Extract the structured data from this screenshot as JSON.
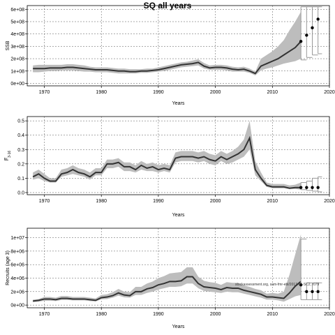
{
  "figure_title": "SQ all years",
  "annotation": "stockassessment.org, sam-fmr-ebl/2017-01-SC2, r079",
  "chart_data": [
    {
      "type": "line",
      "ylabel": "SSB",
      "xlabel": "Years",
      "xlim": [
        1967,
        2020
      ],
      "ylim": [
        -20000000.0,
        630000000.0
      ],
      "xticks": [
        1970,
        1980,
        1990,
        2000,
        2010,
        2020
      ],
      "yticks": [
        0,
        100000000.0,
        200000000.0,
        300000000.0,
        400000000.0,
        500000000.0,
        600000000.0
      ],
      "ytick_labels": [
        "0e+00",
        "1e+08",
        "2e+08",
        "3e+08",
        "4e+08",
        "5e+08",
        "6e+08"
      ],
      "grid": true,
      "series": [
        {
          "x": [
            1968,
            1969,
            1970,
            1971,
            1972,
            1973,
            1974,
            1975,
            1976,
            1977,
            1978,
            1979,
            1980,
            1981,
            1982,
            1983,
            1984,
            1985,
            1986,
            1987,
            1988,
            1989,
            1990,
            1991,
            1992,
            1993,
            1994,
            1995,
            1996,
            1997,
            1998,
            1999,
            2000,
            2001,
            2002,
            2003,
            2004,
            2005,
            2006,
            2007,
            2008,
            2009,
            2010,
            2011,
            2012,
            2013,
            2014,
            2015
          ],
          "values": [
            120000000.0,
            120000000.0,
            120000000.0,
            125000000.0,
            125000000.0,
            125000000.0,
            130000000.0,
            130000000.0,
            125000000.0,
            120000000.0,
            115000000.0,
            110000000.0,
            110000000.0,
            110000000.0,
            105000000.0,
            100000000.0,
            100000000.0,
            95000000.0,
            95000000.0,
            100000000.0,
            100000000.0,
            105000000.0,
            110000000.0,
            120000000.0,
            130000000.0,
            140000000.0,
            150000000.0,
            155000000.0,
            160000000.0,
            170000000.0,
            140000000.0,
            125000000.0,
            130000000.0,
            130000000.0,
            125000000.0,
            115000000.0,
            110000000.0,
            115000000.0,
            100000000.0,
            80000000.0,
            140000000.0,
            160000000.0,
            180000000.0,
            200000000.0,
            230000000.0,
            260000000.0,
            290000000.0,
            340000000.0
          ],
          "lower": [
            90000000.0,
            90000000.0,
            95000000.0,
            100000000.0,
            100000000.0,
            105000000.0,
            105000000.0,
            105000000.0,
            100000000.0,
            95000000.0,
            95000000.0,
            90000000.0,
            90000000.0,
            90000000.0,
            85000000.0,
            80000000.0,
            80000000.0,
            80000000.0,
            80000000.0,
            85000000.0,
            85000000.0,
            90000000.0,
            95000000.0,
            100000000.0,
            110000000.0,
            120000000.0,
            130000000.0,
            135000000.0,
            140000000.0,
            145000000.0,
            120000000.0,
            110000000.0,
            110000000.0,
            110000000.0,
            105000000.0,
            95000000.0,
            95000000.0,
            95000000.0,
            85000000.0,
            65000000.0,
            105000000.0,
            120000000.0,
            130000000.0,
            145000000.0,
            160000000.0,
            170000000.0,
            180000000.0,
            200000000.0
          ],
          "upper": [
            145000000.0,
            150000000.0,
            150000000.0,
            150000000.0,
            150000000.0,
            150000000.0,
            155000000.0,
            155000000.0,
            150000000.0,
            145000000.0,
            135000000.0,
            130000000.0,
            130000000.0,
            130000000.0,
            125000000.0,
            120000000.0,
            120000000.0,
            115000000.0,
            115000000.0,
            115000000.0,
            120000000.0,
            120000000.0,
            130000000.0,
            140000000.0,
            150000000.0,
            160000000.0,
            170000000.0,
            175000000.0,
            185000000.0,
            195000000.0,
            165000000.0,
            145000000.0,
            150000000.0,
            150000000.0,
            145000000.0,
            135000000.0,
            130000000.0,
            135000000.0,
            120000000.0,
            95000000.0,
            200000000.0,
            230000000.0,
            260000000.0,
            300000000.0,
            350000000.0,
            430000000.0,
            500000000.0,
            580000000.0
          ]
        }
      ],
      "forecast": {
        "x": [
          2015,
          2016,
          2017,
          2018
        ],
        "median": [
          340000000.0,
          390000000.0,
          450000000.0,
          520000000.0
        ],
        "lower": [
          190000000.0,
          210000000.0,
          230000000.0,
          240000000.0
        ],
        "upper": [
          620000000.0,
          620000000.0,
          620000000.0,
          620000000.0
        ]
      }
    },
    {
      "type": "line",
      "ylabel": "F̅(3-16)",
      "ylabel_main": "F̅",
      "ylabel_sub": "3-16",
      "xlabel": "Years",
      "xlim": [
        1967,
        2020
      ],
      "ylim": [
        -0.015,
        0.53
      ],
      "xticks": [
        1970,
        1980,
        1990,
        2000,
        2010,
        2020
      ],
      "yticks": [
        0.0,
        0.1,
        0.2,
        0.3,
        0.4,
        0.5
      ],
      "ytick_labels": [
        "0.0",
        "0.1",
        "0.2",
        "0.3",
        "0.4",
        "0.5"
      ],
      "grid": true,
      "series": [
        {
          "x": [
            1968,
            1969,
            1970,
            1971,
            1972,
            1973,
            1974,
            1975,
            1976,
            1977,
            1978,
            1979,
            1980,
            1981,
            1982,
            1983,
            1984,
            1985,
            1986,
            1987,
            1988,
            1989,
            1990,
            1991,
            1992,
            1993,
            1994,
            1995,
            1996,
            1997,
            1998,
            1999,
            2000,
            2001,
            2002,
            2003,
            2004,
            2005,
            2006,
            2007,
            2008,
            2009,
            2010,
            2011,
            2012,
            2013,
            2014,
            2015
          ],
          "values": [
            0.11,
            0.13,
            0.1,
            0.08,
            0.08,
            0.13,
            0.14,
            0.16,
            0.14,
            0.13,
            0.11,
            0.14,
            0.14,
            0.2,
            0.2,
            0.21,
            0.18,
            0.18,
            0.16,
            0.19,
            0.17,
            0.18,
            0.16,
            0.17,
            0.16,
            0.24,
            0.25,
            0.25,
            0.25,
            0.24,
            0.25,
            0.23,
            0.22,
            0.25,
            0.23,
            0.25,
            0.27,
            0.3,
            0.38,
            0.16,
            0.1,
            0.05,
            0.04,
            0.04,
            0.04,
            0.03,
            0.035,
            0.035
          ],
          "lower": [
            0.09,
            0.1,
            0.08,
            0.07,
            0.07,
            0.11,
            0.12,
            0.13,
            0.12,
            0.11,
            0.09,
            0.12,
            0.12,
            0.17,
            0.17,
            0.18,
            0.15,
            0.15,
            0.14,
            0.16,
            0.15,
            0.15,
            0.14,
            0.15,
            0.14,
            0.21,
            0.22,
            0.22,
            0.22,
            0.21,
            0.22,
            0.2,
            0.19,
            0.22,
            0.2,
            0.21,
            0.23,
            0.25,
            0.3,
            0.12,
            0.08,
            0.04,
            0.03,
            0.03,
            0.03,
            0.025,
            0.025,
            0.02
          ],
          "upper": [
            0.14,
            0.16,
            0.13,
            0.1,
            0.1,
            0.16,
            0.17,
            0.19,
            0.17,
            0.16,
            0.14,
            0.17,
            0.17,
            0.23,
            0.23,
            0.24,
            0.21,
            0.21,
            0.19,
            0.22,
            0.2,
            0.21,
            0.19,
            0.2,
            0.19,
            0.28,
            0.29,
            0.29,
            0.29,
            0.28,
            0.29,
            0.27,
            0.26,
            0.29,
            0.27,
            0.29,
            0.32,
            0.37,
            0.5,
            0.22,
            0.14,
            0.07,
            0.06,
            0.06,
            0.06,
            0.05,
            0.055,
            0.07
          ]
        }
      ],
      "forecast": {
        "x": [
          2015,
          2016,
          2017,
          2018
        ],
        "median": [
          0.035,
          0.035,
          0.035,
          0.035
        ],
        "lower": [
          0.02,
          0.015,
          0.01,
          0.005
        ],
        "upper": [
          0.07,
          0.08,
          0.1,
          0.11
        ]
      }
    },
    {
      "type": "line",
      "ylabel": "Recruits (age 3)",
      "xlabel": "Years",
      "xlim": [
        1967,
        2020
      ],
      "ylim": [
        -400000.0,
        11400000.0
      ],
      "xticks": [
        1970,
        1980,
        1990,
        2000,
        2010,
        2020
      ],
      "yticks": [
        0,
        2000000.0,
        4000000.0,
        6000000.0,
        8000000.0,
        10000000.0
      ],
      "ytick_labels": [
        "0e+00",
        "2e+06",
        "4e+06",
        "6e+06",
        "8e+06",
        "1e+07"
      ],
      "grid": true,
      "series": [
        {
          "x": [
            1968,
            1969,
            1970,
            1971,
            1972,
            1973,
            1974,
            1975,
            1976,
            1977,
            1978,
            1979,
            1980,
            1981,
            1982,
            1983,
            1984,
            1985,
            1986,
            1987,
            1988,
            1989,
            1990,
            1991,
            1992,
            1993,
            1994,
            1995,
            1996,
            1997,
            1998,
            1999,
            2000,
            2001,
            2002,
            2003,
            2004,
            2005,
            2006,
            2007,
            2008,
            2009,
            2010,
            2011,
            2012,
            2013,
            2014,
            2015
          ],
          "values": [
            600000.0,
            700000.0,
            900000.0,
            900000.0,
            800000.0,
            1000000.0,
            1000000.0,
            900000.0,
            900000.0,
            900000.0,
            800000.0,
            700000.0,
            1100000.0,
            1200000.0,
            1400000.0,
            1800000.0,
            1500000.0,
            1400000.0,
            2000000.0,
            2000000.0,
            2400000.0,
            2600000.0,
            3000000.0,
            3200000.0,
            3500000.0,
            3500000.0,
            3600000.0,
            4200000.0,
            4200000.0,
            3200000.0,
            2700000.0,
            2600000.0,
            2500000.0,
            2300000.0,
            2600000.0,
            2500000.0,
            2500000.0,
            2200000.0,
            2000000.0,
            1800000.0,
            1600000.0,
            1200000.0,
            1200000.0,
            1100000.0,
            1000000.0,
            1800000.0,
            2800000.0,
            3500000.0
          ],
          "lower": [
            450000.0,
            500000.0,
            650000.0,
            650000.0,
            600000.0,
            750000.0,
            750000.0,
            700000.0,
            700000.0,
            700000.0,
            600000.0,
            550000.0,
            850000.0,
            900000.0,
            1100000.0,
            1400000.0,
            1150000.0,
            1100000.0,
            1500000.0,
            1500000.0,
            1800000.0,
            2000000.0,
            2300000.0,
            2500000.0,
            2700000.0,
            2700000.0,
            2800000.0,
            3200000.0,
            3200000.0,
            2500000.0,
            2100000.0,
            2000000.0,
            1900000.0,
            1800000.0,
            2000000.0,
            1900000.0,
            1900000.0,
            1700000.0,
            1500000.0,
            1300000.0,
            1100000.0,
            800000.0,
            800000.0,
            700000.0,
            500000.0,
            900000.0,
            1300000.0,
            1500000.0
          ],
          "upper": [
            800000.0,
            900000.0,
            1200000.0,
            1200000.0,
            1100000.0,
            1350000.0,
            1350000.0,
            1200000.0,
            1200000.0,
            1200000.0,
            1100000.0,
            1000000.0,
            1500000.0,
            1600000.0,
            1900000.0,
            2400000.0,
            2000000.0,
            1900000.0,
            2700000.0,
            2700000.0,
            3200000.0,
            3500000.0,
            4000000.0,
            4300000.0,
            4700000.0,
            4800000.0,
            4900000.0,
            5600000.0,
            5600000.0,
            4200000.0,
            3600000.0,
            3400000.0,
            3300000.0,
            3000000.0,
            3400000.0,
            3300000.0,
            3300000.0,
            2900000.0,
            2700000.0,
            2400000.0,
            2200000.0,
            1700000.0,
            1800000.0,
            1700000.0,
            2000000.0,
            4500000.0,
            7500000.0,
            10500000.0
          ]
        }
      ],
      "forecast": {
        "x": [
          2015,
          2016,
          2017,
          2018
        ],
        "median": [
          3000000.0,
          2000000.0,
          2000000.0,
          2000000.0
        ],
        "lower": [
          800000.0,
          800000.0,
          800000.0,
          800000.0
        ],
        "upper": [
          9800000.0,
          3300000.0,
          3300000.0,
          3300000.0
        ]
      }
    }
  ]
}
